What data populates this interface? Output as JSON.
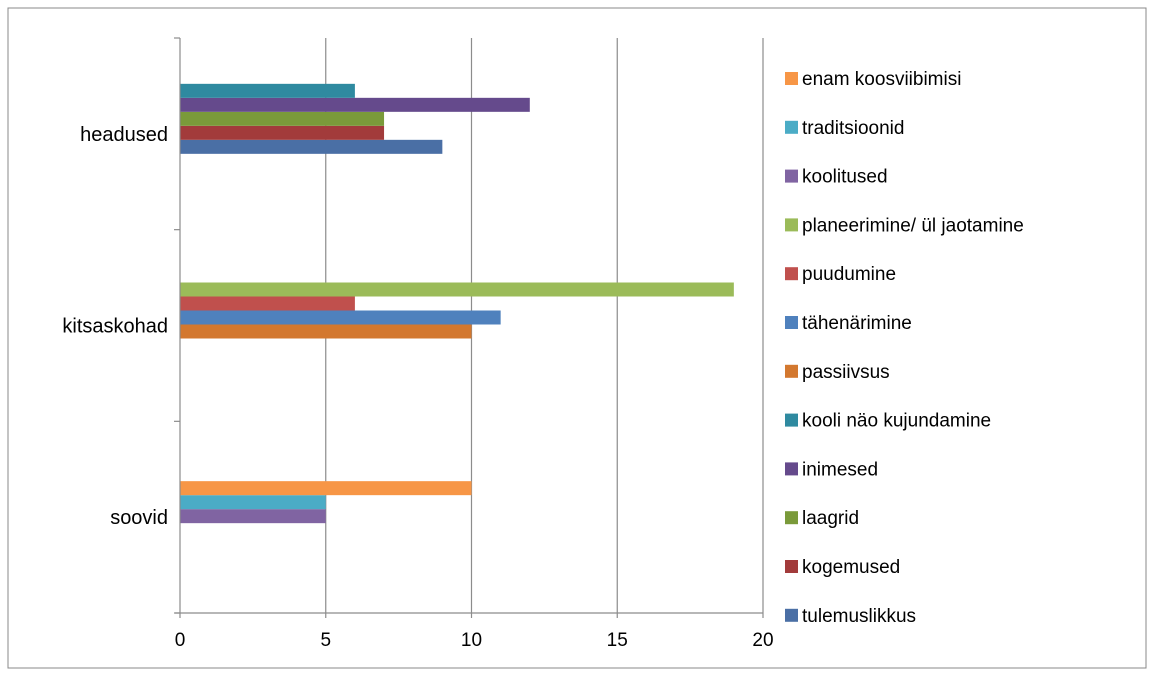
{
  "chart_data": {
    "type": "bar",
    "orientation": "horizontal",
    "categories": [
      "soovid",
      "kitsaskohad",
      "headused"
    ],
    "xlim": [
      0,
      20
    ],
    "x_ticks": [
      0,
      5,
      10,
      15,
      20
    ],
    "grid": true,
    "legend_placement": "right",
    "series": [
      {
        "name": "tulemuslikkus",
        "color": "#4A6FA5",
        "values": [
          null,
          null,
          9
        ]
      },
      {
        "name": "kogemused",
        "color": "#A23B3B",
        "values": [
          null,
          null,
          7
        ]
      },
      {
        "name": "laagrid",
        "color": "#7A9A3A",
        "values": [
          null,
          null,
          7
        ]
      },
      {
        "name": "inimesed",
        "color": "#654A8C",
        "values": [
          null,
          null,
          12
        ]
      },
      {
        "name": "kooli näo kujundamine",
        "color": "#2F8AA0",
        "values": [
          null,
          null,
          6
        ]
      },
      {
        "name": "passiivsus",
        "color": "#D3782F",
        "values": [
          null,
          10,
          null
        ]
      },
      {
        "name": "tähenärimine",
        "color": "#4F81BD",
        "values": [
          null,
          11,
          null
        ]
      },
      {
        "name": "puudumine",
        "color": "#C0504D",
        "values": [
          null,
          6,
          null
        ]
      },
      {
        "name": "planeerimine/ ül jaotamine",
        "color": "#9BBB59",
        "values": [
          null,
          19,
          null
        ]
      },
      {
        "name": "koolitused",
        "color": "#8064A2",
        "values": [
          5,
          null,
          null
        ]
      },
      {
        "name": "traditsioonid",
        "color": "#4BACC6",
        "values": [
          5,
          null,
          null
        ]
      },
      {
        "name": "enam koosviibimisi",
        "color": "#F79646",
        "values": [
          10,
          null,
          null
        ]
      }
    ]
  }
}
